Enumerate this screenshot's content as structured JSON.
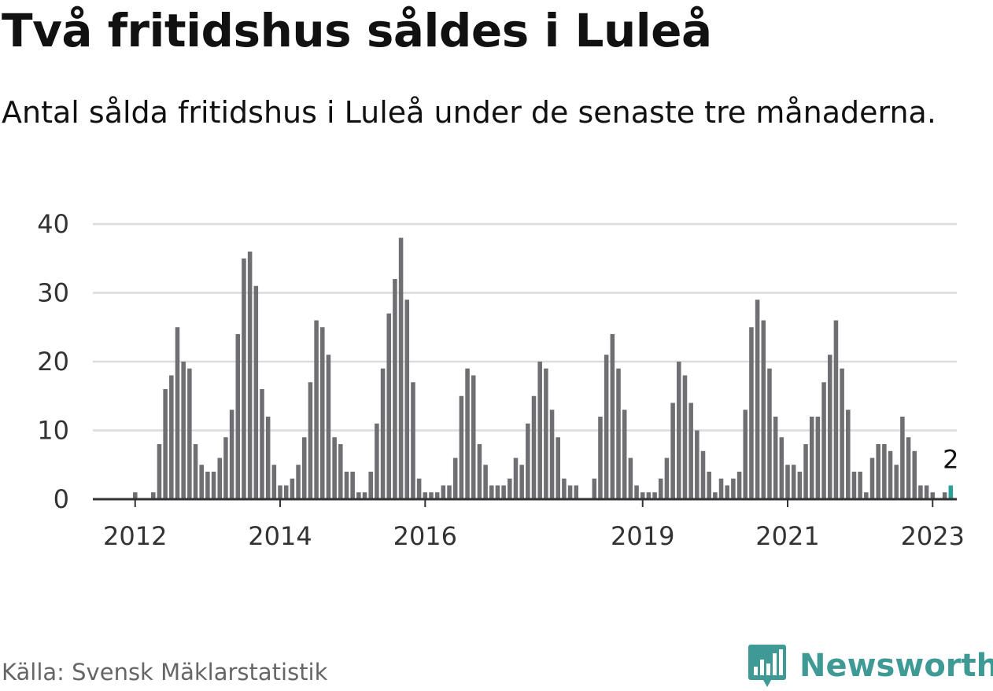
{
  "title": "Två fritidshus såldes i Luleå",
  "subtitle": "Antal sålda fritidshus i Luleå under de senaste tre månaderna.",
  "source": "Källa: Svensk Mäklarstatistik",
  "brand": {
    "name": "Newsworthy",
    "icon": "newsworthy-logo-icon"
  },
  "colors": {
    "bar": "#6e6e73",
    "highlight": "#2aa198",
    "grid": "#dcdcdc",
    "axis": "#333333",
    "brand": "#3f9a96"
  },
  "chart_data": {
    "type": "bar",
    "title": "Två fritidshus såldes i Luleå",
    "subtitle": "Antal sålda fritidshus i Luleå under de senaste tre månaderna.",
    "xlabel": "",
    "ylabel": "",
    "ylim": [
      0,
      40
    ],
    "yticks": [
      0,
      10,
      20,
      30,
      40
    ],
    "grid": true,
    "x_start": "2011-07",
    "x_step": "month",
    "xticks": [
      {
        "label": "2012",
        "at": "2012-01"
      },
      {
        "label": "2014",
        "at": "2014-01"
      },
      {
        "label": "2016",
        "at": "2016-01"
      },
      {
        "label": "2019",
        "at": "2019-01"
      },
      {
        "label": "2021",
        "at": "2021-01"
      },
      {
        "label": "2023",
        "at": "2023-01"
      }
    ],
    "values": [
      0,
      0,
      0,
      0,
      0,
      0,
      1,
      0,
      0,
      1,
      8,
      16,
      18,
      25,
      20,
      19,
      8,
      5,
      4,
      4,
      6,
      9,
      13,
      24,
      35,
      36,
      31,
      16,
      12,
      5,
      2,
      2,
      3,
      5,
      9,
      17,
      26,
      25,
      21,
      9,
      8,
      4,
      4,
      1,
      1,
      4,
      11,
      19,
      27,
      32,
      38,
      29,
      17,
      3,
      1,
      1,
      1,
      2,
      2,
      6,
      15,
      19,
      18,
      8,
      5,
      2,
      2,
      2,
      3,
      6,
      5,
      11,
      15,
      20,
      19,
      13,
      9,
      3,
      2,
      2,
      0,
      0,
      3,
      12,
      21,
      24,
      19,
      13,
      6,
      2,
      1,
      1,
      1,
      3,
      6,
      14,
      20,
      18,
      14,
      10,
      7,
      4,
      1,
      3,
      2,
      3,
      4,
      13,
      25,
      29,
      26,
      19,
      12,
      9,
      5,
      5,
      4,
      8,
      12,
      12,
      17,
      21,
      26,
      19,
      13,
      4,
      4,
      1,
      6,
      8,
      8,
      7,
      5,
      12,
      9,
      7,
      2,
      2,
      1,
      0,
      1,
      2
    ],
    "highlight": {
      "index": 141,
      "label": "2"
    }
  }
}
